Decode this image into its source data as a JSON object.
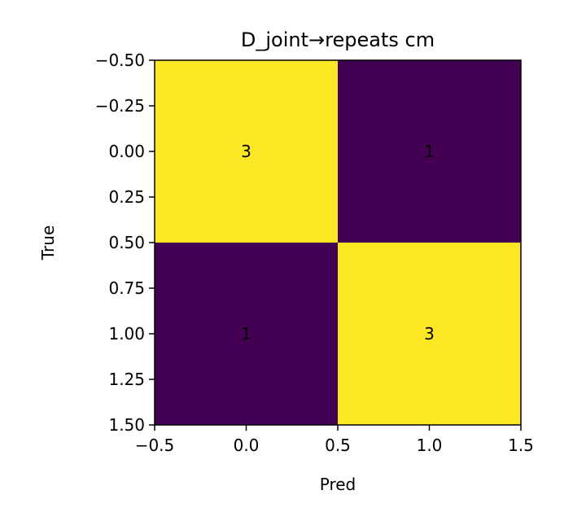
{
  "chart_data": {
    "type": "heatmap",
    "title": "D_joint→repeats cm",
    "xlabel": "Pred",
    "ylabel": "True",
    "xlim": [
      -0.5,
      1.5
    ],
    "ylim": [
      1.5,
      -0.5
    ],
    "xticks": [
      -0.5,
      0.0,
      0.5,
      1.0,
      1.5
    ],
    "xtick_labels": [
      "−0.5",
      "0.0",
      "0.5",
      "1.0",
      "1.5"
    ],
    "yticks": [
      -0.5,
      -0.25,
      0.0,
      0.25,
      0.5,
      0.75,
      1.0,
      1.25,
      1.5
    ],
    "ytick_labels": [
      "−0.50",
      "−0.25",
      "0.00",
      "0.25",
      "0.50",
      "0.75",
      "1.00",
      "1.25",
      "1.50"
    ],
    "matrix": [
      [
        3,
        1
      ],
      [
        1,
        3
      ]
    ],
    "colormap": {
      "low": "#440154",
      "high": "#fde725"
    },
    "grid": false,
    "legend": "none"
  }
}
